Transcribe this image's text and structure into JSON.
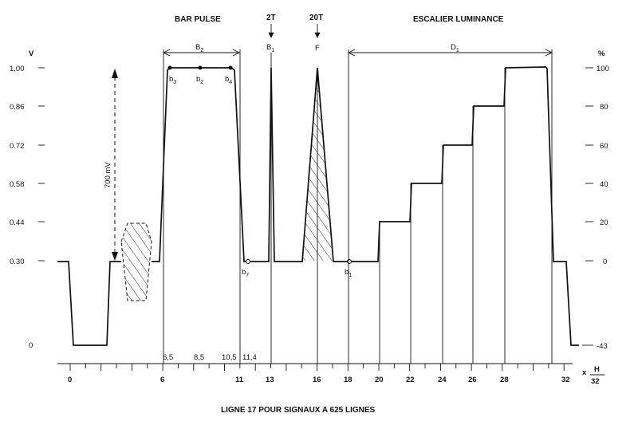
{
  "title_bar_pulse": "BAR PULSE",
  "title_escalier": "ESCALIER LUMINANCE",
  "label_2t": "2T",
  "label_20t": "20T",
  "label_b1_upper": "B",
  "label_b1_upper_sub": "1",
  "label_f": "F",
  "label_b2_upper": "B",
  "label_b2_upper_sub": "2",
  "label_d1": "D",
  "label_d1_sub": "1",
  "label_700mv": "700 mV",
  "point_labels": {
    "b3": "b",
    "b3_sub": "3",
    "b2": "b",
    "b2_sub": "2",
    "b4": "b",
    "b4_sub": "4",
    "b7": "b",
    "b7_sub": "7",
    "b1": "b",
    "b1_sub": "1"
  },
  "left_axis_unit": "V",
  "right_axis_unit": "%",
  "left_ticks": [
    "1,00",
    "0.86",
    "0.72",
    "0.58",
    "0.44",
    "0.30",
    "0"
  ],
  "right_ticks": [
    "100",
    "80",
    "60",
    "40",
    "20",
    "0",
    "-43"
  ],
  "x_ticks": [
    "0",
    "6",
    "11",
    "13",
    "16",
    "18",
    "20",
    "22",
    "24",
    "26",
    "28",
    "32"
  ],
  "x_upper_ticks": [
    "6,5",
    "8,5",
    "10,5",
    "11,4"
  ],
  "x_unit_prefix": "x",
  "x_unit_num": "H",
  "x_unit_den": "32",
  "caption": "LIGNE 17 POUR SIGNAUX A 625 LIGNES",
  "stair_levels_percent": [
    0,
    20,
    40,
    60,
    80,
    100
  ]
}
